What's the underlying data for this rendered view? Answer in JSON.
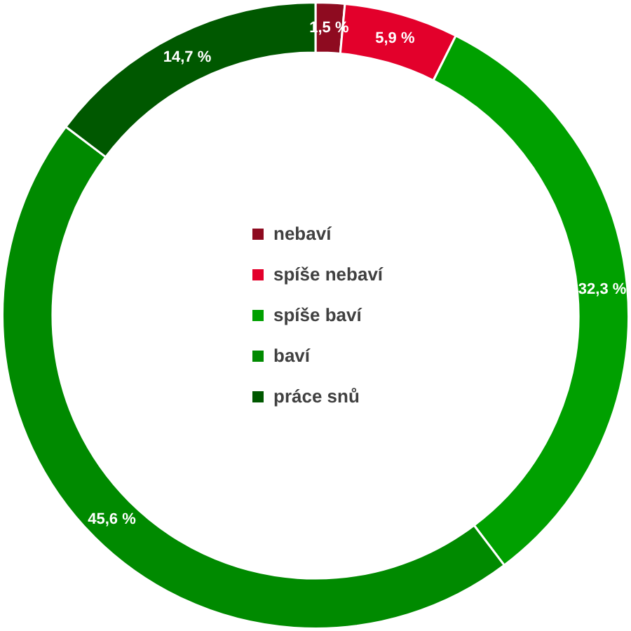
{
  "chart_data": {
    "type": "donut",
    "categories": [
      "nebaví",
      "spíše nebaví",
      "spíše baví",
      "baví",
      "práce snů"
    ],
    "values": [
      1.5,
      5.9,
      32.3,
      45.6,
      14.7
    ],
    "colors": [
      "#8e0b20",
      "#e3002b",
      "#00a000",
      "#008a00",
      "#005800"
    ],
    "value_labels": [
      "1,5 %",
      "5,9 %",
      "32,3 %",
      "45,6 %",
      "14,7 %"
    ],
    "legend": "center"
  }
}
